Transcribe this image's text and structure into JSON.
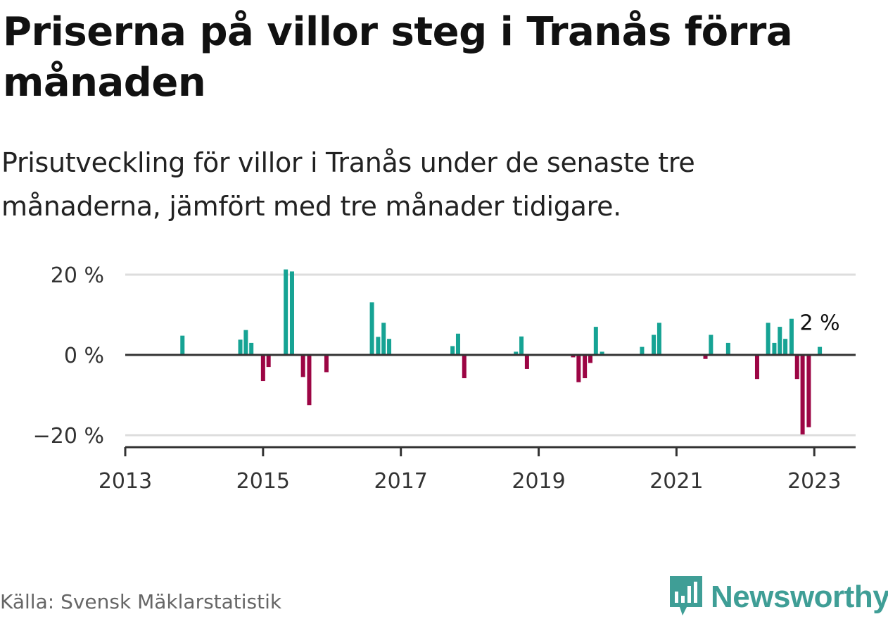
{
  "title": "Priserna på villor steg i Tranås förra månaden",
  "subtitle": "Prisutveckling för villor i Tranås under de senaste tre månaderna, jämfört med tre månader tidigare.",
  "footer": {
    "source": "Källa: Svensk Mäklarstatistik",
    "logo_icon": "bar-chart-speech-bubble-icon",
    "logo_text": "Newsworthy"
  },
  "colors": {
    "positive": "#16a394",
    "negative": "#9c0544",
    "grid": "#dddddd",
    "axis": "#333333",
    "logo": "#3f9e96"
  },
  "chart_data": {
    "type": "bar",
    "title": "Priserna på villor steg i Tranås förra månaden",
    "xlabel": "",
    "ylabel": "",
    "ylim": [
      -24,
      24
    ],
    "xlim": [
      2013,
      2023.6
    ],
    "y_ticks": [
      {
        "value": 20,
        "label": "20 %"
      },
      {
        "value": 0,
        "label": "0 %"
      },
      {
        "value": -20,
        "label": "−20 %"
      }
    ],
    "x_ticks": [
      {
        "value": 2013,
        "label": "2013"
      },
      {
        "value": 2015,
        "label": "2015"
      },
      {
        "value": 2017,
        "label": "2017"
      },
      {
        "value": 2019,
        "label": "2019"
      },
      {
        "value": 2021,
        "label": "2021"
      },
      {
        "value": 2023,
        "label": "2023"
      }
    ],
    "annotation": {
      "label": "2 %",
      "at_x": 2023.08,
      "at_y": 2
    },
    "series": [
      {
        "name": "Prisutveckling",
        "x": [
          2013.83,
          2014.67,
          2014.75,
          2014.83,
          2015.0,
          2015.08,
          2015.33,
          2015.42,
          2015.58,
          2015.67,
          2015.92,
          2016.58,
          2016.67,
          2016.75,
          2016.83,
          2017.75,
          2017.83,
          2017.92,
          2018.67,
          2018.75,
          2018.83,
          2019.5,
          2019.58,
          2019.67,
          2019.75,
          2019.83,
          2019.92,
          2020.5,
          2020.67,
          2020.75,
          2021.42,
          2021.5,
          2021.75,
          2022.17,
          2022.33,
          2022.42,
          2022.5,
          2022.58,
          2022.67,
          2022.75,
          2022.83,
          2022.92,
          2023.08
        ],
        "values": [
          4.8,
          3.8,
          6.2,
          3.0,
          -6.5,
          -3.0,
          21.3,
          20.8,
          -5.5,
          -12.5,
          -4.3,
          13.1,
          4.5,
          8.0,
          4.0,
          2.2,
          5.3,
          -5.8,
          0.8,
          4.6,
          -3.5,
          -0.6,
          -6.8,
          -5.8,
          -2.0,
          7.0,
          0.8,
          2.0,
          5.0,
          8.0,
          -1.0,
          5.0,
          3.0,
          -6.0,
          8.0,
          3.0,
          7.0,
          4.0,
          9.0,
          -6.0,
          -19.8,
          -18.0,
          2.0
        ]
      }
    ]
  }
}
